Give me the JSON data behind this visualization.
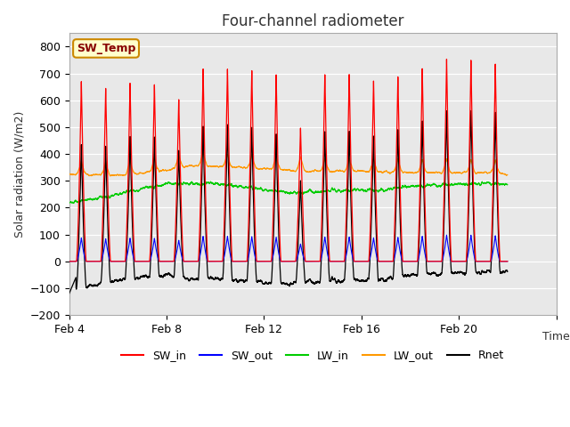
{
  "title": "Four-channel radiometer",
  "xlabel": "Time",
  "ylabel": "Solar radiation (W/m2)",
  "ylim": [
    -200,
    850
  ],
  "yticks": [
    -200,
    -100,
    0,
    100,
    200,
    300,
    400,
    500,
    600,
    700,
    800
  ],
  "n_days": 18,
  "points_per_day": 480,
  "background_color": "#ffffff",
  "plot_bg_color": "#e8e8e8",
  "grid_color": "#ffffff",
  "sw_temp_label": "SW_Temp",
  "sw_temp_bg": "#ffffcc",
  "sw_temp_border": "#cc8800",
  "sw_temp_text_color": "#880000",
  "legend_entries": [
    "SW_in",
    "SW_out",
    "LW_in",
    "LW_out",
    "Rnet"
  ],
  "legend_colors": [
    "#ff0000",
    "#0000ff",
    "#00cc00",
    "#ff9900",
    "#000000"
  ]
}
